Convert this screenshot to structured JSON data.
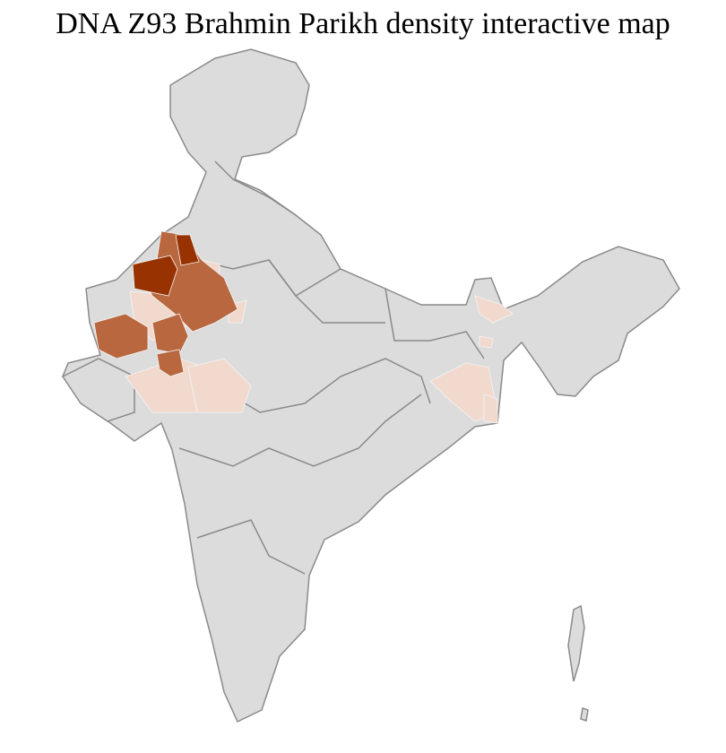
{
  "title": "DNA Z93 Brahmin Parikh density interactive map",
  "colors": {
    "no_data": "#dcdcdc",
    "border": "#8a8a8a",
    "district_border": "#f4f4f4",
    "low": "#f1d9cd",
    "medium": "#b8673f",
    "high": "#983200"
  }
}
